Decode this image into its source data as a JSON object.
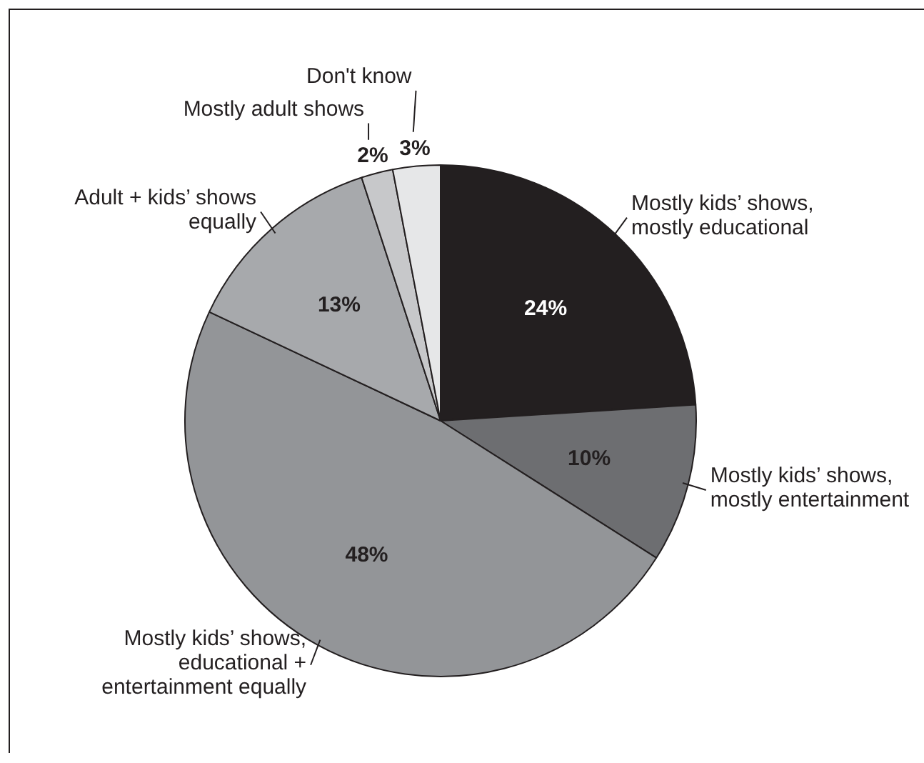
{
  "chart_data": {
    "type": "pie",
    "categories": [
      "Mostly kids’ shows, mostly educational",
      "Mostly kids’ shows, mostly entertainment",
      "Mostly kids’ shows, educational + entertainment equally",
      "Adult + kids’ shows equally",
      "Mostly adult shows",
      "Don't know"
    ],
    "values": [
      24,
      10,
      48,
      13,
      2,
      3
    ],
    "colors": [
      "#231f20",
      "#6d6e71",
      "#939598",
      "#a7a9ac",
      "#c7c8ca",
      "#e6e7e8"
    ],
    "value_labels": [
      "24%",
      "10%",
      "48%",
      "13%",
      "2%",
      "3%"
    ],
    "legend": false
  }
}
